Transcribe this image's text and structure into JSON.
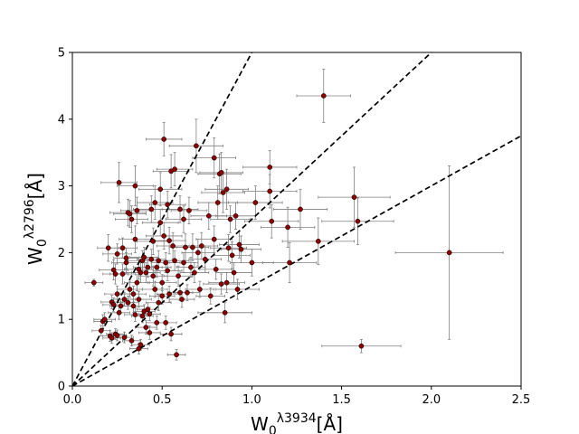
{
  "chart_data": {
    "type": "scatter",
    "title": "",
    "xlabel": {
      "base": "W",
      "sub": "0",
      "sup": "λ3934",
      "unit": "[Å]"
    },
    "ylabel": {
      "base": "W",
      "sub": "0",
      "sup": "λ2796",
      "unit": "[Å]"
    },
    "xlim": [
      0,
      2.5
    ],
    "ylim": [
      0,
      5
    ],
    "xticks": [
      "0.0",
      "0.5",
      "1.0",
      "1.5",
      "2.0",
      "2.5"
    ],
    "yticks": [
      "0",
      "1",
      "2",
      "3",
      "4",
      "5"
    ],
    "grid": false,
    "legend": "none",
    "colors": {
      "point": "#8b0000",
      "point_edge": "#000000",
      "errorbar": "#808080",
      "line": "#000000"
    },
    "reference_lines": [
      {
        "slope": 5.0,
        "style": "dashed"
      },
      {
        "slope": 2.5,
        "style": "dashed"
      },
      {
        "slope": 1.5,
        "style": "dashed"
      }
    ],
    "points": [
      [
        0.12,
        1.55,
        0.05,
        0.05
      ],
      [
        0.16,
        0.83,
        0.05,
        0.08
      ],
      [
        0.17,
        0.97,
        0.05,
        0.1
      ],
      [
        0.18,
        1.0,
        0.06,
        0.1
      ],
      [
        0.2,
        2.07,
        0.06,
        0.2
      ],
      [
        0.21,
        0.75,
        0.04,
        0.08
      ],
      [
        0.22,
        0.72,
        0.05,
        0.08
      ],
      [
        0.22,
        1.26,
        0.06,
        0.1
      ],
      [
        0.23,
        1.74,
        0.08,
        0.15
      ],
      [
        0.23,
        1.22,
        0.06,
        0.1
      ],
      [
        0.24,
        1.68,
        0.07,
        0.15
      ],
      [
        0.24,
        0.78,
        0.05,
        0.08
      ],
      [
        0.25,
        1.98,
        0.08,
        0.15
      ],
      [
        0.25,
        1.38,
        0.07,
        0.12
      ],
      [
        0.25,
        0.76,
        0.05,
        0.08
      ],
      [
        0.26,
        3.05,
        0.1,
        0.3
      ],
      [
        0.26,
        1.1,
        0.06,
        0.1
      ],
      [
        0.27,
        1.2,
        0.06,
        0.1
      ],
      [
        0.28,
        2.07,
        0.08,
        0.15
      ],
      [
        0.28,
        1.68,
        0.07,
        0.15
      ],
      [
        0.29,
        1.3,
        0.06,
        0.1
      ],
      [
        0.29,
        0.73,
        0.05,
        0.08
      ],
      [
        0.3,
        1.85,
        0.08,
        0.15
      ],
      [
        0.3,
        1.92,
        0.07,
        0.15
      ],
      [
        0.31,
        2.6,
        0.1,
        0.2
      ],
      [
        0.31,
        1.25,
        0.06,
        0.1
      ],
      [
        0.32,
        1.45,
        0.07,
        0.12
      ],
      [
        0.32,
        2.58,
        0.09,
        0.2
      ],
      [
        0.33,
        0.68,
        0.05,
        0.08
      ],
      [
        0.33,
        2.5,
        0.09,
        0.2
      ],
      [
        0.34,
        1.38,
        0.07,
        0.12
      ],
      [
        0.34,
        1.2,
        0.06,
        0.1
      ],
      [
        0.35,
        2.2,
        0.09,
        0.2
      ],
      [
        0.35,
        1.07,
        0.06,
        0.1
      ],
      [
        0.35,
        3.0,
        0.1,
        0.3
      ],
      [
        0.36,
        2.63,
        0.09,
        0.2
      ],
      [
        0.36,
        1.55,
        0.07,
        0.12
      ],
      [
        0.37,
        1.75,
        0.08,
        0.15
      ],
      [
        0.37,
        1.3,
        0.07,
        0.12
      ],
      [
        0.37,
        0.56,
        0.05,
        0.08
      ],
      [
        0.38,
        0.62,
        0.05,
        0.08
      ],
      [
        0.38,
        1.7,
        0.08,
        0.15
      ],
      [
        0.39,
        1.88,
        0.08,
        0.15
      ],
      [
        0.39,
        1.05,
        0.06,
        0.1
      ],
      [
        0.4,
        1.93,
        0.08,
        0.15
      ],
      [
        0.4,
        1.12,
        0.06,
        0.1
      ],
      [
        0.41,
        0.88,
        0.06,
        0.1
      ],
      [
        0.41,
        1.7,
        0.08,
        0.15
      ],
      [
        0.42,
        1.78,
        0.08,
        0.15
      ],
      [
        0.42,
        1.15,
        0.06,
        0.1
      ],
      [
        0.43,
        1.08,
        0.06,
        0.1
      ],
      [
        0.43,
        0.8,
        0.06,
        0.1
      ],
      [
        0.44,
        1.9,
        0.08,
        0.15
      ],
      [
        0.44,
        2.65,
        0.1,
        0.2
      ],
      [
        0.45,
        1.65,
        0.08,
        0.15
      ],
      [
        0.45,
        2.17,
        0.09,
        0.2
      ],
      [
        0.46,
        2.75,
        0.1,
        0.25
      ],
      [
        0.46,
        1.45,
        0.07,
        0.12
      ],
      [
        0.47,
        1.78,
        0.08,
        0.15
      ],
      [
        0.47,
        0.95,
        0.06,
        0.1
      ],
      [
        0.48,
        1.25,
        0.07,
        0.12
      ],
      [
        0.48,
        1.88,
        0.08,
        0.15
      ],
      [
        0.49,
        2.95,
        0.12,
        0.25
      ],
      [
        0.49,
        2.45,
        0.1,
        0.2
      ],
      [
        0.5,
        1.35,
        0.07,
        0.12
      ],
      [
        0.5,
        1.55,
        0.08,
        0.12
      ],
      [
        0.51,
        3.7,
        0.1,
        0.25
      ],
      [
        0.51,
        2.25,
        0.1,
        0.2
      ],
      [
        0.52,
        1.85,
        0.08,
        0.15
      ],
      [
        0.52,
        0.95,
        0.06,
        0.1
      ],
      [
        0.53,
        2.72,
        0.1,
        0.2
      ],
      [
        0.53,
        1.73,
        0.08,
        0.15
      ],
      [
        0.54,
        2.18,
        0.09,
        0.2
      ],
      [
        0.54,
        1.38,
        0.07,
        0.12
      ],
      [
        0.55,
        3.22,
        0.1,
        0.25
      ],
      [
        0.55,
        0.78,
        0.06,
        0.1
      ],
      [
        0.56,
        2.1,
        0.09,
        0.2
      ],
      [
        0.57,
        3.25,
        0.1,
        0.25
      ],
      [
        0.57,
        1.88,
        0.08,
        0.15
      ],
      [
        0.58,
        0.47,
        0.05,
        0.08
      ],
      [
        0.59,
        1.65,
        0.08,
        0.15
      ],
      [
        0.6,
        2.65,
        0.1,
        0.2
      ],
      [
        0.6,
        1.4,
        0.07,
        0.12
      ],
      [
        0.61,
        1.3,
        0.07,
        0.12
      ],
      [
        0.62,
        2.5,
        0.1,
        0.2
      ],
      [
        0.62,
        1.85,
        0.08,
        0.15
      ],
      [
        0.63,
        2.08,
        0.09,
        0.2
      ],
      [
        0.64,
        1.4,
        0.07,
        0.12
      ],
      [
        0.65,
        2.63,
        0.1,
        0.2
      ],
      [
        0.66,
        1.78,
        0.08,
        0.15
      ],
      [
        0.67,
        2.08,
        0.09,
        0.2
      ],
      [
        0.68,
        1.7,
        0.08,
        0.15
      ],
      [
        0.69,
        3.6,
        0.15,
        0.4
      ],
      [
        0.7,
        2.0,
        0.09,
        0.2
      ],
      [
        0.71,
        1.45,
        0.08,
        0.12
      ],
      [
        0.72,
        2.1,
        0.09,
        0.2
      ],
      [
        0.74,
        1.9,
        0.09,
        0.2
      ],
      [
        0.76,
        2.55,
        0.1,
        0.2
      ],
      [
        0.77,
        1.35,
        0.08,
        0.12
      ],
      [
        0.79,
        3.42,
        0.12,
        0.3
      ],
      [
        0.79,
        2.2,
        0.1,
        0.2
      ],
      [
        0.8,
        1.75,
        0.09,
        0.15
      ],
      [
        0.81,
        2.75,
        0.11,
        0.25
      ],
      [
        0.82,
        3.18,
        0.12,
        0.3
      ],
      [
        0.83,
        1.53,
        0.1,
        0.15
      ],
      [
        0.83,
        3.2,
        0.12,
        0.3
      ],
      [
        0.84,
        2.9,
        0.12,
        0.3
      ],
      [
        0.85,
        1.1,
        0.15,
        0.15
      ],
      [
        0.86,
        1.55,
        0.1,
        0.15
      ],
      [
        0.86,
        2.95,
        0.12,
        0.3
      ],
      [
        0.87,
        2.07,
        0.1,
        0.2
      ],
      [
        0.88,
        2.5,
        0.11,
        0.2
      ],
      [
        0.89,
        1.96,
        0.1,
        0.2
      ],
      [
        0.9,
        1.7,
        0.1,
        0.15
      ],
      [
        0.91,
        2.55,
        0.11,
        0.2
      ],
      [
        0.92,
        1.45,
        0.12,
        0.15
      ],
      [
        0.93,
        2.12,
        0.11,
        0.2
      ],
      [
        0.94,
        2.05,
        0.11,
        0.2
      ],
      [
        1.0,
        1.85,
        0.12,
        0.2
      ],
      [
        1.02,
        2.75,
        0.15,
        0.25
      ],
      [
        1.1,
        3.28,
        0.15,
        0.25
      ],
      [
        1.1,
        2.92,
        0.15,
        0.25
      ],
      [
        1.11,
        2.47,
        0.15,
        0.25
      ],
      [
        1.2,
        2.38,
        0.15,
        0.3
      ],
      [
        1.21,
        1.85,
        0.15,
        0.3
      ],
      [
        1.27,
        2.65,
        0.15,
        0.3
      ],
      [
        1.37,
        2.17,
        0.2,
        0.35
      ],
      [
        1.4,
        4.35,
        0.15,
        0.4
      ],
      [
        1.57,
        2.83,
        0.2,
        0.45
      ],
      [
        1.59,
        2.47,
        0.2,
        0.35
      ],
      [
        1.61,
        0.6,
        0.22,
        0.1
      ],
      [
        2.1,
        2.0,
        0.3,
        1.3
      ]
    ]
  }
}
